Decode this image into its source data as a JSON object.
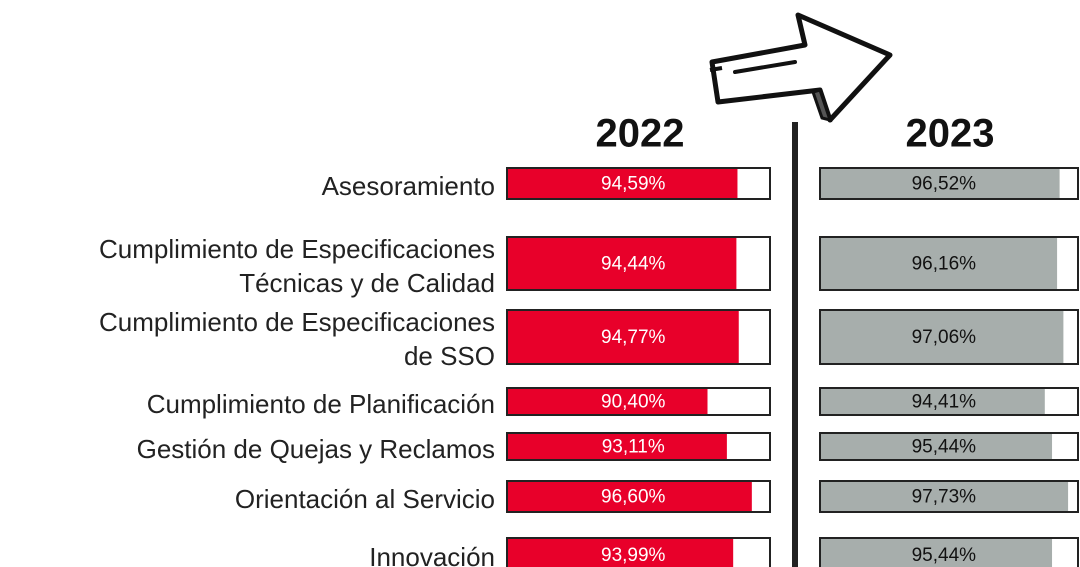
{
  "chart_data": {
    "type": "bar",
    "categories": [
      "Asesoramiento",
      "Cumplimiento de Especificaciones\nTécnicas y de Calidad",
      "Cumplimiento de Especificaciones\nde SSO",
      "Cumplimiento de Planificación",
      "Gestión de Quejas y Reclamos",
      "Orientación al Servicio",
      "Innovación"
    ],
    "series": [
      {
        "name": "2022",
        "color": "#e8002a",
        "values": [
          94.59,
          94.44,
          94.77,
          90.4,
          93.11,
          96.6,
          93.99
        ],
        "value_labels": [
          "94,59%",
          "94,44%",
          "94,77%",
          "90,40%",
          "93,11%",
          "96,60%",
          "93,99%"
        ]
      },
      {
        "name": "2023",
        "color": "#a7aeac",
        "values": [
          96.52,
          96.16,
          97.06,
          94.41,
          95.44,
          97.73,
          95.44
        ],
        "value_labels": [
          "96,52%",
          "96,16%",
          "97,06%",
          "94,41%",
          "95,44%",
          "97,73%",
          "95,44%"
        ]
      }
    ],
    "xlim": [
      62.5,
      99
    ]
  }
}
